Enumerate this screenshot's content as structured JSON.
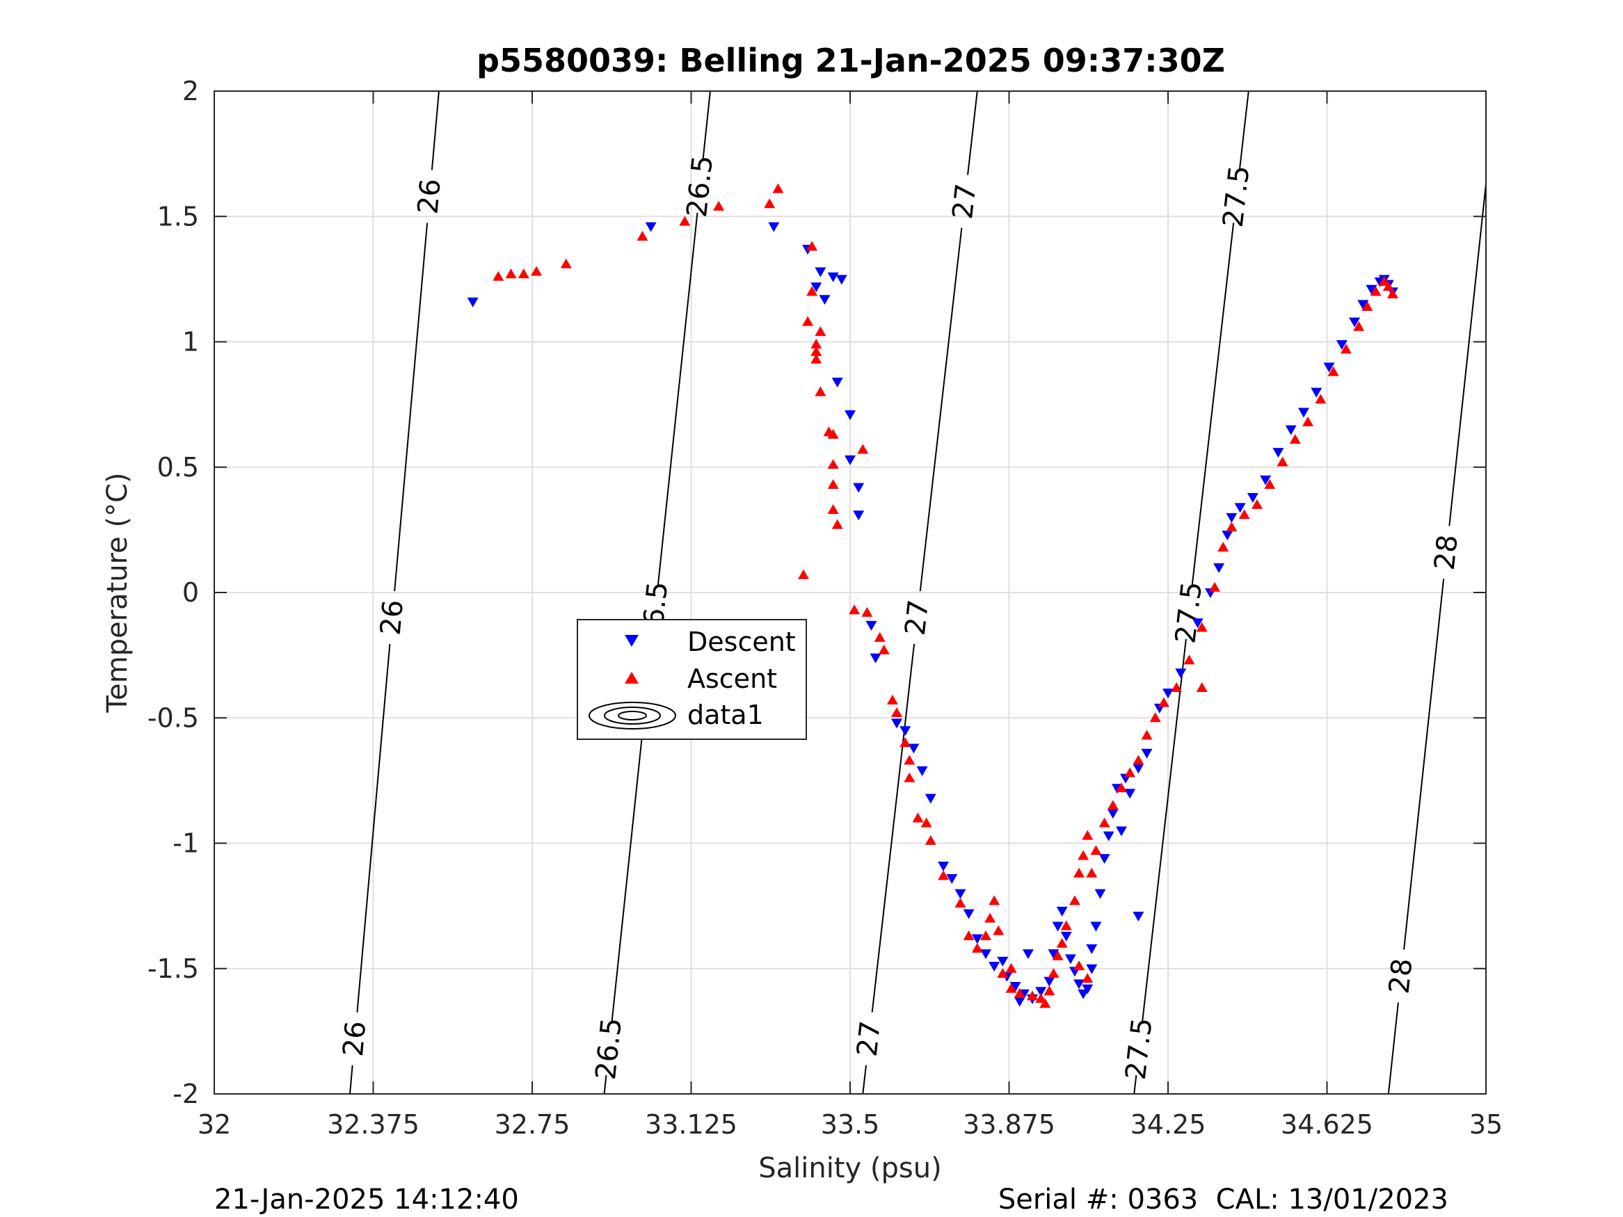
{
  "chart_data": {
    "type": "scatter",
    "title": "p5580039: Belling 21-Jan-2025 09:37:30Z",
    "xlabel": "Salinity (psu)",
    "ylabel": "Temperature (°C)",
    "xlim": [
      32,
      35
    ],
    "ylim": [
      -2,
      2
    ],
    "xticks": [
      32,
      32.375,
      32.75,
      33.125,
      33.5,
      33.875,
      34.25,
      34.625,
      35
    ],
    "xtick_labels": [
      "32",
      "32.375",
      "32.75",
      "33.125",
      "33.5",
      "33.875",
      "34.25",
      "34.625",
      "35"
    ],
    "yticks": [
      -2,
      -1.5,
      -1,
      -0.5,
      0,
      0.5,
      1,
      1.5,
      2
    ],
    "ytick_labels": [
      "-2",
      "-1.5",
      "-1",
      "-0.5",
      "0",
      "0.5",
      "1",
      "1.5",
      "2"
    ],
    "grid": true,
    "legend": {
      "position": "center-left",
      "entries": [
        "Descent",
        "Ascent",
        "data1"
      ]
    },
    "series": [
      {
        "name": "Descent",
        "marker": "down-triangle",
        "color": "#0000ff",
        "points": [
          [
            32.61,
            1.16
          ],
          [
            33.03,
            1.46
          ],
          [
            33.32,
            1.46
          ],
          [
            33.4,
            1.37
          ],
          [
            33.43,
            1.28
          ],
          [
            33.46,
            1.26
          ],
          [
            33.48,
            1.25
          ],
          [
            33.42,
            1.22
          ],
          [
            33.44,
            1.17
          ],
          [
            33.47,
            0.84
          ],
          [
            33.5,
            0.71
          ],
          [
            33.5,
            0.53
          ],
          [
            33.52,
            0.42
          ],
          [
            33.52,
            0.31
          ],
          [
            33.55,
            -0.13
          ],
          [
            33.56,
            -0.26
          ],
          [
            33.61,
            -0.52
          ],
          [
            33.63,
            -0.55
          ],
          [
            33.65,
            -0.62
          ],
          [
            33.67,
            -0.71
          ],
          [
            33.69,
            -0.82
          ],
          [
            33.72,
            -1.09
          ],
          [
            33.74,
            -1.14
          ],
          [
            33.76,
            -1.2
          ],
          [
            33.78,
            -1.28
          ],
          [
            33.8,
            -1.38
          ],
          [
            33.82,
            -1.44
          ],
          [
            33.84,
            -1.49
          ],
          [
            33.86,
            -1.47
          ],
          [
            33.87,
            -1.53
          ],
          [
            33.89,
            -1.57
          ],
          [
            33.91,
            -1.6
          ],
          [
            33.93,
            -1.62
          ],
          [
            33.95,
            -1.59
          ],
          [
            33.97,
            -1.55
          ],
          [
            33.98,
            -1.44
          ],
          [
            33.99,
            -1.33
          ],
          [
            34.0,
            -1.27
          ],
          [
            34.01,
            -1.37
          ],
          [
            34.02,
            -1.46
          ],
          [
            34.03,
            -1.51
          ],
          [
            34.04,
            -1.56
          ],
          [
            34.05,
            -1.6
          ],
          [
            34.06,
            -1.58
          ],
          [
            34.07,
            -1.5
          ],
          [
            34.07,
            -1.42
          ],
          [
            34.08,
            -1.33
          ],
          [
            34.09,
            -1.2
          ],
          [
            34.1,
            -1.06
          ],
          [
            34.11,
            -0.97
          ],
          [
            34.12,
            -0.88
          ],
          [
            34.13,
            -0.78
          ],
          [
            34.15,
            -0.74
          ],
          [
            34.16,
            -0.8
          ],
          [
            34.18,
            -0.7
          ],
          [
            34.2,
            -0.64
          ],
          [
            34.23,
            -0.46
          ],
          [
            34.25,
            -0.4
          ],
          [
            34.28,
            -0.32
          ],
          [
            34.32,
            -0.12
          ],
          [
            34.35,
            0.0
          ],
          [
            34.37,
            0.1
          ],
          [
            34.39,
            0.23
          ],
          [
            34.4,
            0.3
          ],
          [
            34.42,
            0.34
          ],
          [
            34.45,
            0.38
          ],
          [
            34.48,
            0.45
          ],
          [
            34.51,
            0.56
          ],
          [
            34.54,
            0.65
          ],
          [
            34.57,
            0.72
          ],
          [
            34.6,
            0.8
          ],
          [
            34.63,
            0.9
          ],
          [
            34.66,
            0.99
          ],
          [
            34.69,
            1.08
          ],
          [
            34.71,
            1.15
          ],
          [
            34.73,
            1.21
          ],
          [
            34.75,
            1.24
          ],
          [
            34.76,
            1.25
          ],
          [
            34.77,
            1.23
          ],
          [
            34.78,
            1.2
          ],
          [
            34.18,
            -1.29
          ],
          [
            33.9,
            -1.63
          ],
          [
            33.92,
            -1.44
          ],
          [
            34.14,
            -0.95
          ]
        ]
      },
      {
        "name": "Ascent",
        "marker": "up-triangle",
        "color": "#ff0000",
        "points": [
          [
            32.67,
            1.26
          ],
          [
            32.7,
            1.27
          ],
          [
            32.73,
            1.27
          ],
          [
            32.76,
            1.28
          ],
          [
            32.83,
            1.31
          ],
          [
            33.01,
            1.42
          ],
          [
            33.11,
            1.48
          ],
          [
            33.19,
            1.54
          ],
          [
            33.31,
            1.55
          ],
          [
            33.33,
            1.61
          ],
          [
            33.41,
            1.38
          ],
          [
            33.41,
            1.2
          ],
          [
            33.43,
            1.04
          ],
          [
            33.4,
            1.08
          ],
          [
            33.42,
            0.99
          ],
          [
            33.42,
            0.93
          ],
          [
            33.42,
            0.96
          ],
          [
            33.43,
            0.8
          ],
          [
            33.45,
            0.64
          ],
          [
            33.46,
            0.63
          ],
          [
            33.46,
            0.51
          ],
          [
            33.46,
            0.43
          ],
          [
            33.46,
            0.33
          ],
          [
            33.47,
            0.27
          ],
          [
            33.53,
            0.57
          ],
          [
            33.39,
            0.07
          ],
          [
            33.51,
            -0.07
          ],
          [
            33.54,
            -0.08
          ],
          [
            33.57,
            -0.18
          ],
          [
            33.58,
            -0.23
          ],
          [
            33.6,
            -0.43
          ],
          [
            33.61,
            -0.48
          ],
          [
            33.63,
            -0.6
          ],
          [
            33.64,
            -0.67
          ],
          [
            33.64,
            -0.74
          ],
          [
            33.66,
            -0.9
          ],
          [
            33.68,
            -0.92
          ],
          [
            33.69,
            -0.99
          ],
          [
            33.72,
            -1.13
          ],
          [
            33.76,
            -1.24
          ],
          [
            33.78,
            -1.37
          ],
          [
            33.8,
            -1.42
          ],
          [
            33.82,
            -1.37
          ],
          [
            33.83,
            -1.3
          ],
          [
            33.84,
            -1.23
          ],
          [
            33.85,
            -1.35
          ],
          [
            33.86,
            -1.52
          ],
          [
            33.88,
            -1.58
          ],
          [
            33.9,
            -1.6
          ],
          [
            33.93,
            -1.61
          ],
          [
            33.95,
            -1.62
          ],
          [
            33.96,
            -1.64
          ],
          [
            33.97,
            -1.59
          ],
          [
            33.98,
            -1.52
          ],
          [
            33.99,
            -1.45
          ],
          [
            34.0,
            -1.4
          ],
          [
            34.01,
            -1.33
          ],
          [
            34.03,
            -1.23
          ],
          [
            34.04,
            -1.12
          ],
          [
            34.05,
            -1.05
          ],
          [
            34.06,
            -0.97
          ],
          [
            34.07,
            -1.12
          ],
          [
            34.08,
            -1.03
          ],
          [
            34.1,
            -0.92
          ],
          [
            34.12,
            -0.85
          ],
          [
            34.14,
            -0.78
          ],
          [
            34.16,
            -0.72
          ],
          [
            34.18,
            -0.67
          ],
          [
            34.2,
            -0.57
          ],
          [
            34.22,
            -0.5
          ],
          [
            34.24,
            -0.44
          ],
          [
            34.27,
            -0.38
          ],
          [
            34.3,
            -0.27
          ],
          [
            34.33,
            -0.14
          ],
          [
            34.36,
            0.02
          ],
          [
            34.38,
            0.18
          ],
          [
            34.4,
            0.26
          ],
          [
            34.43,
            0.31
          ],
          [
            34.46,
            0.35
          ],
          [
            34.49,
            0.43
          ],
          [
            34.52,
            0.52
          ],
          [
            34.55,
            0.61
          ],
          [
            34.58,
            0.68
          ],
          [
            34.61,
            0.77
          ],
          [
            34.64,
            0.88
          ],
          [
            34.67,
            0.97
          ],
          [
            34.7,
            1.06
          ],
          [
            34.72,
            1.14
          ],
          [
            34.74,
            1.2
          ],
          [
            34.76,
            1.24
          ],
          [
            34.77,
            1.22
          ],
          [
            34.78,
            1.19
          ],
          [
            34.33,
            -0.38
          ],
          [
            34.04,
            -1.49
          ],
          [
            34.06,
            -1.54
          ],
          [
            33.88,
            -1.5
          ]
        ]
      }
    ],
    "contours": [
      {
        "label": "26",
        "points": [
          [
            32.53,
            2.0
          ],
          [
            32.32,
            -2.0
          ]
        ],
        "label_positions": [
          [
            32.5,
            1.58
          ],
          [
            32.39,
            -0.1
          ],
          [
            32.32,
            -1.78
          ]
        ]
      },
      {
        "label": "26.5",
        "points": [
          [
            33.17,
            2.0
          ],
          [
            32.92,
            -2.0
          ]
        ],
        "label_positions": [
          [
            33.13,
            1.62
          ],
          [
            33.03,
            -0.08
          ],
          [
            32.93,
            -1.82
          ]
        ]
      },
      {
        "label": "27",
        "points": [
          [
            33.8,
            2.0
          ],
          [
            33.53,
            -2.0
          ]
        ],
        "label_positions": [
          [
            33.76,
            1.56
          ],
          [
            33.63,
            -0.1
          ],
          [
            33.54,
            -1.78
          ]
        ]
      },
      {
        "label": "27.5",
        "points": [
          [
            34.44,
            2.0
          ],
          [
            34.17,
            -2.0
          ]
        ],
        "label_positions": [
          [
            34.4,
            1.58
          ],
          [
            34.25,
            -0.08
          ],
          [
            34.18,
            -1.82
          ]
        ]
      },
      {
        "label": "28",
        "points": [
          [
            35.0,
            1.63
          ],
          [
            34.77,
            -2.0
          ]
        ],
        "label_positions": [
          [
            34.91,
            0.16
          ],
          [
            34.82,
            -1.53
          ]
        ]
      }
    ]
  },
  "footer": {
    "left": "21-Jan-2025 14:12:40",
    "right": "Serial #: 0363  CAL: 13/01/2023"
  }
}
